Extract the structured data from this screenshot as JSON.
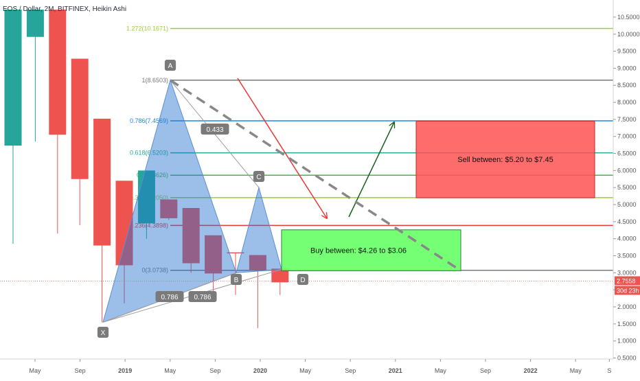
{
  "header": {
    "symbol_line": "EOS / Dollar, 2M, BITFINEX, Heikin Ashi"
  },
  "chart_data": {
    "type": "candlestick",
    "title": "EOS / Dollar, 2M, BITFINEX, Heikin Ashi",
    "x_ticks": [
      "May",
      "Sep",
      "2019",
      "May",
      "Sep",
      "2020",
      "May",
      "Sep",
      "2021",
      "May",
      "Sep",
      "2022",
      "May",
      "S"
    ],
    "y_ticks": [
      "10.5000",
      "10.0000",
      "9.5000",
      "9.0000",
      "8.5000",
      "8.0000",
      "7.5000",
      "7.0000",
      "6.5000",
      "6.0000",
      "5.5000",
      "5.0000",
      "4.5000",
      "4.0000",
      "3.5000",
      "3.0000",
      "2.5000",
      "2.0000",
      "1.5000",
      "1.0000",
      "0.5000"
    ],
    "ylim": [
      0.47,
      10.72
    ],
    "colors": {
      "up": "#26a69a",
      "down": "#ef5350"
    },
    "candles": [
      {
        "open": 6.73,
        "close": 10.72,
        "high": 10.72,
        "low": 3.85,
        "up": true
      },
      {
        "open": 9.92,
        "close": 10.72,
        "high": 10.72,
        "low": 6.85,
        "up": true
      },
      {
        "open": 10.72,
        "close": 7.05,
        "high": 10.72,
        "low": 4.15,
        "up": false
      },
      {
        "open": 9.28,
        "close": 5.75,
        "high": 9.28,
        "low": 4.4,
        "up": false
      },
      {
        "open": 7.52,
        "close": 3.8,
        "high": 7.52,
        "low": 1.55,
        "up": false
      },
      {
        "open": 5.7,
        "close": 3.22,
        "high": 5.7,
        "low": 2.1,
        "up": false
      },
      {
        "open": 4.45,
        "close": 6.0,
        "high": 6.0,
        "low": 4.0,
        "up": true
      },
      {
        "open": 5.15,
        "close": 4.6,
        "high": 5.15,
        "low": 4.55,
        "up": false
      },
      {
        "open": 4.9,
        "close": 3.28,
        "high": 4.9,
        "low": 3.0,
        "up": false
      },
      {
        "open": 4.1,
        "close": 2.98,
        "high": 4.1,
        "low": 2.15,
        "up": false
      },
      {
        "open": 3.6,
        "close": 3.6,
        "high": 3.6,
        "low": 2.35,
        "up": false
      },
      {
        "open": 3.52,
        "close": 3.08,
        "high": 3.52,
        "low": 1.38,
        "up": false
      },
      {
        "open": 3.12,
        "close": 2.72,
        "high": 3.12,
        "low": 2.35,
        "up": false
      }
    ],
    "fib_levels": [
      {
        "label": "1.272(10.1671)",
        "value": 10.167,
        "color": "#9acd32"
      },
      {
        "label": "1(8.6503)",
        "value": 8.65,
        "color": "#787878"
      },
      {
        "label": "0.786(7.4569)",
        "value": 7.457,
        "color": "#1e88e5"
      },
      {
        "label": "0.618(6.5203)",
        "value": 6.52,
        "color": "#26a69a"
      },
      {
        "label": "0.5(5.8626)",
        "value": 5.863,
        "color": "#4caf50"
      },
      {
        "label": "0.382(5.2050)",
        "value": 5.205,
        "color": "#9acd32"
      },
      {
        "label": "0.236(4.3898)",
        "value": 4.39,
        "color": "#e53935"
      },
      {
        "label": "0(3.0738)",
        "value": 3.074,
        "color": "#787878"
      }
    ],
    "pattern_points": [
      {
        "label": "X",
        "value": 1.55
      },
      {
        "label": "A",
        "value": 8.65
      },
      {
        "label": "B",
        "value": 3.0
      },
      {
        "label": "C",
        "value": 5.5
      },
      {
        "label": "D",
        "value": 3.1
      }
    ],
    "ratios": [
      "0.433",
      "0.786",
      "0.786"
    ],
    "sell_zone": {
      "label": "Sell between: $5.20 to $7.45",
      "low": 5.2,
      "high": 7.45
    },
    "buy_zone": {
      "label": "Buy between: $4.26 to $3.06",
      "low": 3.06,
      "high": 4.26
    },
    "price_tag": {
      "price": "2.7558",
      "countdown": "30d 23h",
      "value": 2.756
    }
  }
}
